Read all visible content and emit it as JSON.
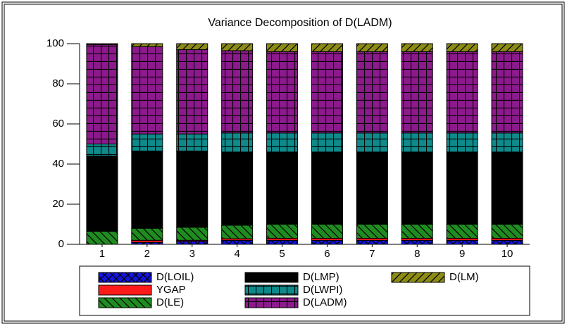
{
  "chart_data": {
    "type": "stacked_bar",
    "title": "Variance Decomposition of D(LADM)",
    "categories": [
      "1",
      "2",
      "3",
      "4",
      "5",
      "6",
      "7",
      "8",
      "9",
      "10"
    ],
    "ylim": [
      0,
      100
    ],
    "yticks": [
      0,
      20,
      40,
      60,
      80,
      100
    ],
    "series": [
      {
        "name": "D(LOIL)",
        "color": "#1414e0",
        "pattern": "cross",
        "values": [
          0,
          1,
          1.5,
          2,
          2,
          2,
          2,
          2,
          2,
          2
        ]
      },
      {
        "name": "YGAP",
        "color": "#ff1a1a",
        "pattern": "solid",
        "values": [
          0,
          1,
          0.5,
          0.8,
          1,
          1,
          1,
          1,
          1,
          1
        ]
      },
      {
        "name": "D(LE)",
        "color": "#1f8c1f",
        "pattern": "backslash",
        "values": [
          6.5,
          6,
          6.5,
          6.7,
          7,
          7,
          7,
          7,
          7,
          7
        ]
      },
      {
        "name": "D(LMP)",
        "color": "#000000",
        "pattern": "solid",
        "values": [
          37.5,
          38.5,
          38,
          36.5,
          36,
          36,
          36,
          36,
          36,
          36
        ]
      },
      {
        "name": "D(LWPI)",
        "color": "#0f8a8a",
        "pattern": "vertical",
        "values": [
          6,
          8.5,
          8.5,
          9.5,
          9.5,
          9.5,
          9.5,
          9.5,
          9.5,
          9.5
        ]
      },
      {
        "name": "D(LADM)",
        "color": "#8c1a8c",
        "pattern": "grid",
        "values": [
          49.5,
          43.5,
          42,
          41,
          40.5,
          40.5,
          40.5,
          40.5,
          40.5,
          40.5
        ]
      },
      {
        "name": "D(LM)",
        "color": "#8c8c14",
        "pattern": "slash",
        "values": [
          0.5,
          1.5,
          3,
          3.5,
          4,
          4,
          4,
          4,
          4,
          4
        ]
      }
    ]
  }
}
